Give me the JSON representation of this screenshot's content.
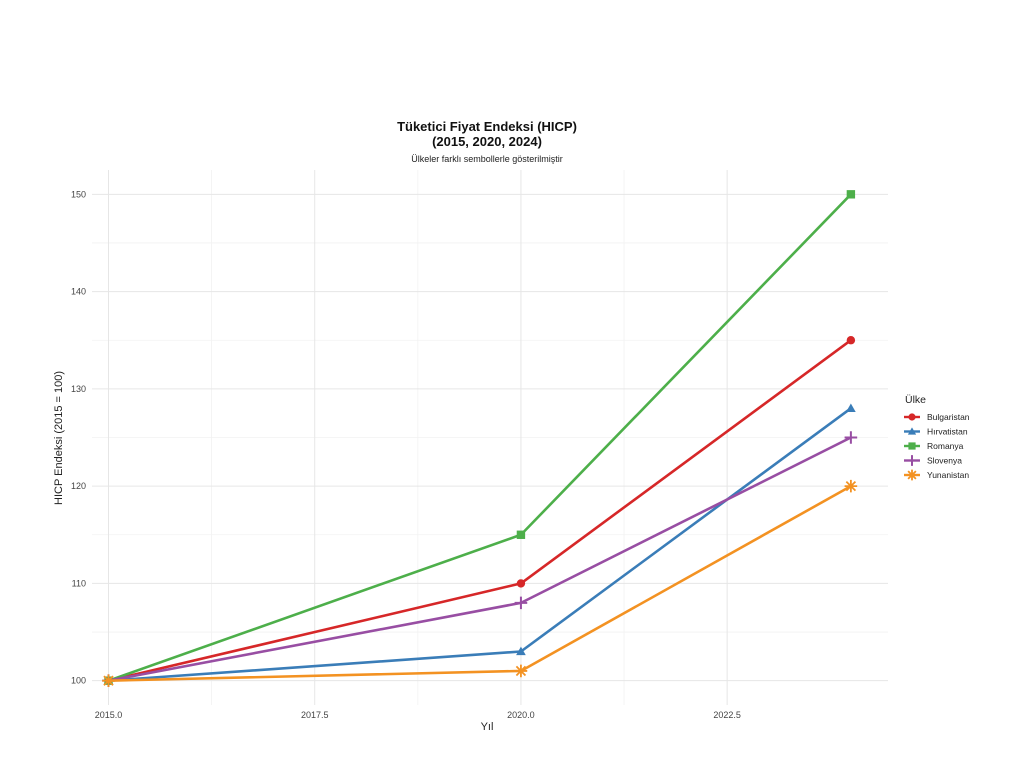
{
  "chart_data": {
    "type": "line",
    "title_line1": "Tüketici Fiyat Endeksi (HICP)",
    "title_line2": "(2015, 2020, 2024)",
    "subtitle": "Ülkeler farklı sembollerle gösterilmiştir",
    "xlabel": "Yıl",
    "ylabel": "HICP Endeksi (2015 = 100)",
    "x": [
      2015,
      2020,
      2024
    ],
    "xlim": [
      2014.8,
      2024.45
    ],
    "ylim": [
      97.5,
      152.5
    ],
    "x_ticks": [
      2015.0,
      2017.5,
      2020.0,
      2022.5
    ],
    "x_tick_labels": [
      "2015.0",
      "2017.5",
      "2020.0",
      "2022.5"
    ],
    "y_ticks": [
      100,
      110,
      120,
      130,
      140,
      150
    ],
    "y_tick_labels": [
      "100",
      "110",
      "120",
      "130",
      "140",
      "150"
    ],
    "grid": true,
    "legend_title": "Ülke",
    "legend_position": "right",
    "series": [
      {
        "name": "Bulgaristan",
        "values": [
          100,
          110,
          135
        ],
        "color": "#d62728",
        "marker": "circle"
      },
      {
        "name": "Hırvatistan",
        "values": [
          100,
          103,
          128
        ],
        "color": "#3a7db8",
        "marker": "triangle"
      },
      {
        "name": "Romanya",
        "values": [
          100,
          115,
          150
        ],
        "color": "#4daf4a",
        "marker": "square"
      },
      {
        "name": "Slovenya",
        "values": [
          100,
          108,
          125
        ],
        "color": "#984ea3",
        "marker": "plus"
      },
      {
        "name": "Yunanistan",
        "values": [
          100,
          101,
          120
        ],
        "color": "#f39222",
        "marker": "asterisk"
      }
    ]
  }
}
